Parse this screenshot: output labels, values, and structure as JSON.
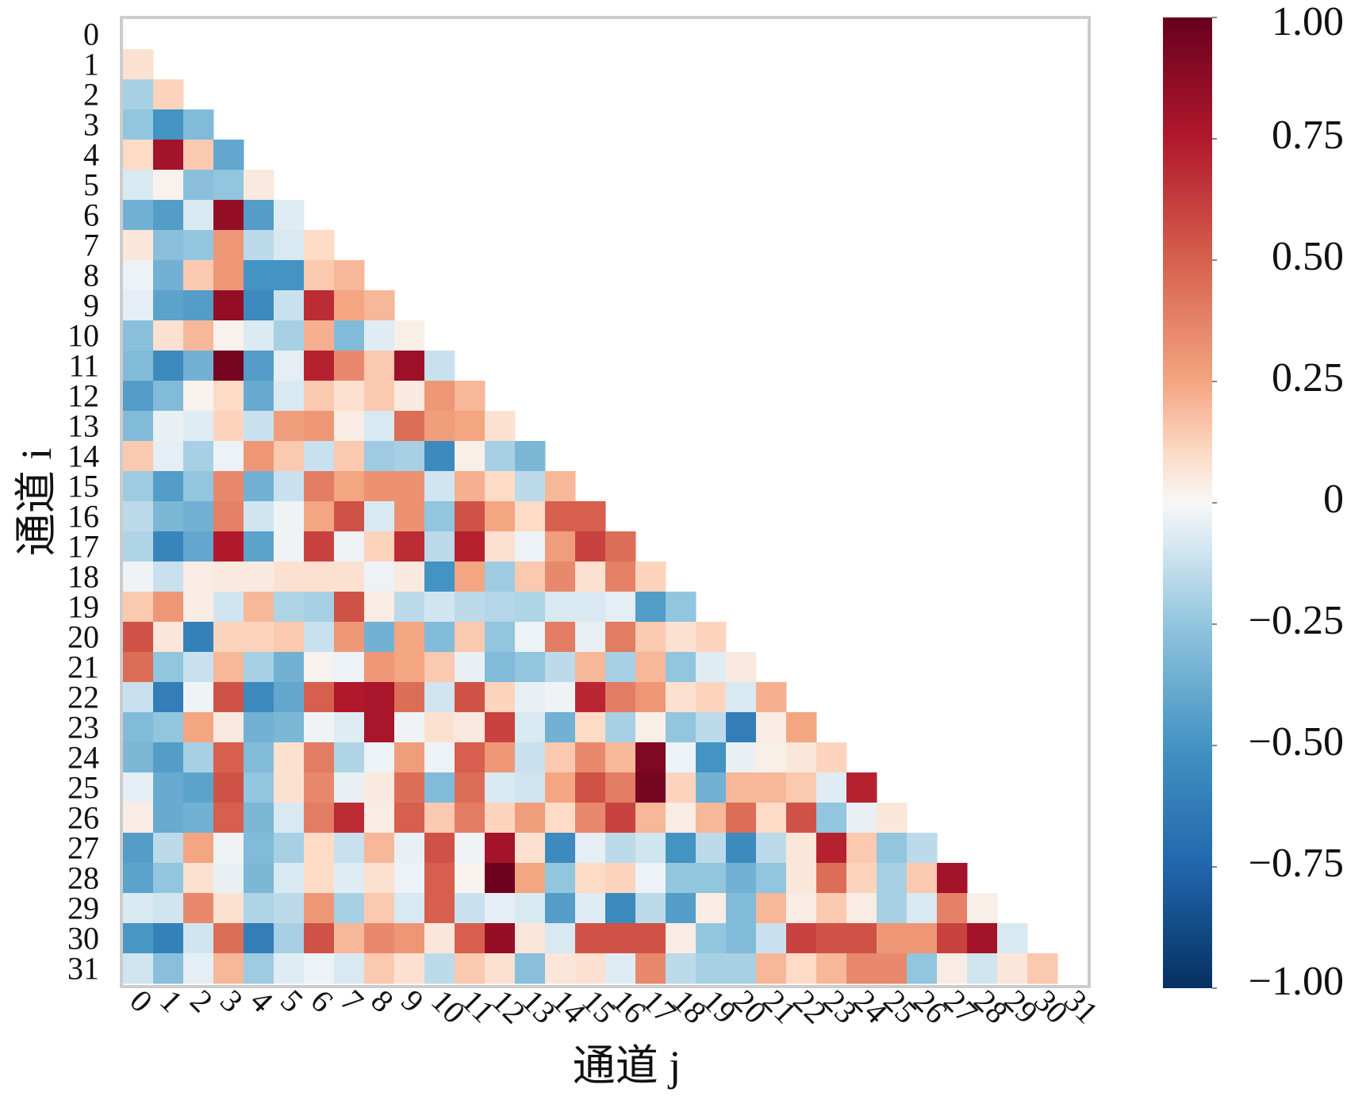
{
  "chart_data": {
    "type": "heatmap",
    "subtype": "lower-triangular correlation matrix",
    "xlabel": "通道 j",
    "ylabel": "通道 i",
    "x_categories": [
      "0",
      "1",
      "2",
      "3",
      "4",
      "5",
      "6",
      "7",
      "8",
      "9",
      "10",
      "11",
      "12",
      "13",
      "14",
      "15",
      "16",
      "17",
      "18",
      "19",
      "20",
      "21",
      "22",
      "23",
      "24",
      "25",
      "26",
      "27",
      "28",
      "29",
      "30",
      "31"
    ],
    "y_categories": [
      "0",
      "1",
      "2",
      "3",
      "4",
      "5",
      "6",
      "7",
      "8",
      "9",
      "10",
      "11",
      "12",
      "13",
      "14",
      "15",
      "16",
      "17",
      "18",
      "19",
      "20",
      "21",
      "22",
      "23",
      "24",
      "25",
      "26",
      "27",
      "28",
      "29",
      "30",
      "31"
    ],
    "colorbar": {
      "colormap": "RdBu_r",
      "range": [
        -1.0,
        1.0
      ],
      "ticks": [
        {
          "value": 1.0,
          "label": "1.00"
        },
        {
          "value": 0.75,
          "label": "0.75"
        },
        {
          "value": 0.5,
          "label": "0.50"
        },
        {
          "value": 0.25,
          "label": "0.25"
        },
        {
          "value": 0,
          "label": "0"
        },
        {
          "value": -0.25,
          "label": "−0.25"
        },
        {
          "value": -0.5,
          "label": "−0.50"
        },
        {
          "value": -0.75,
          "label": "−0.75"
        },
        {
          "value": -1.0,
          "label": "−1.00"
        }
      ]
    },
    "frame_color": "#cccccc",
    "values": [
      [],
      [
        0.08
      ],
      [
        -0.2,
        0.12
      ],
      [
        -0.25,
        -0.5,
        -0.3
      ],
      [
        0.1,
        0.8,
        0.15,
        -0.4
      ],
      [
        -0.08,
        0.02,
        -0.28,
        -0.25,
        0.05
      ],
      [
        -0.35,
        -0.45,
        -0.08,
        0.85,
        -0.45,
        -0.06
      ],
      [
        0.06,
        -0.28,
        -0.25,
        0.3,
        -0.15,
        -0.08,
        0.1
      ],
      [
        -0.03,
        -0.35,
        0.15,
        0.3,
        -0.5,
        -0.5,
        0.15,
        0.2
      ],
      [
        -0.05,
        -0.42,
        -0.45,
        0.85,
        -0.55,
        -0.12,
        0.68,
        0.25,
        0.2
      ],
      [
        -0.28,
        0.08,
        0.2,
        0.02,
        -0.07,
        -0.2,
        0.22,
        -0.3,
        -0.06,
        0.03
      ],
      [
        -0.3,
        -0.55,
        -0.35,
        0.95,
        -0.45,
        -0.05,
        0.72,
        0.35,
        0.15,
        0.82,
        -0.12
      ],
      [
        -0.45,
        -0.3,
        0.02,
        0.1,
        -0.38,
        -0.08,
        0.15,
        0.08,
        0.15,
        0.05,
        0.3,
        0.2
      ],
      [
        -0.3,
        -0.04,
        -0.06,
        0.12,
        -0.12,
        0.28,
        0.3,
        0.04,
        -0.08,
        0.45,
        0.28,
        0.25,
        0.08
      ],
      [
        0.15,
        -0.05,
        -0.2,
        -0.03,
        0.3,
        0.15,
        -0.12,
        0.15,
        -0.22,
        -0.2,
        -0.55,
        0.03,
        -0.2,
        -0.32
      ],
      [
        -0.22,
        -0.45,
        -0.25,
        0.35,
        -0.35,
        -0.12,
        0.4,
        0.25,
        0.32,
        0.32,
        -0.1,
        0.22,
        0.1,
        -0.15,
        0.2
      ],
      [
        -0.15,
        -0.32,
        -0.35,
        0.38,
        -0.1,
        -0.02,
        0.25,
        0.55,
        -0.08,
        0.32,
        -0.25,
        0.55,
        0.25,
        0.1,
        0.5,
        0.5
      ],
      [
        -0.18,
        -0.58,
        -0.4,
        0.75,
        -0.42,
        -0.02,
        0.6,
        -0.02,
        0.12,
        0.68,
        -0.15,
        0.72,
        0.08,
        -0.03,
        0.28,
        0.6,
        0.45
      ],
      [
        -0.02,
        -0.12,
        0.04,
        0.05,
        0.05,
        0.08,
        0.08,
        0.08,
        -0.03,
        0.05,
        -0.5,
        0.25,
        -0.22,
        0.15,
        0.35,
        0.08,
        0.38,
        0.12
      ],
      [
        0.15,
        0.3,
        0.04,
        -0.1,
        0.2,
        -0.18,
        -0.2,
        0.55,
        0.04,
        -0.15,
        -0.1,
        -0.15,
        -0.17,
        -0.18,
        -0.08,
        -0.08,
        -0.05,
        -0.45,
        -0.25
      ],
      [
        0.55,
        0.06,
        -0.6,
        0.12,
        0.12,
        0.15,
        -0.12,
        0.3,
        -0.35,
        0.25,
        -0.3,
        0.15,
        -0.25,
        -0.03,
        0.4,
        -0.04,
        0.4,
        0.15,
        0.08,
        0.12
      ],
      [
        0.45,
        -0.25,
        -0.12,
        0.2,
        -0.2,
        -0.35,
        0.02,
        -0.03,
        0.3,
        0.25,
        0.15,
        -0.04,
        -0.3,
        -0.25,
        -0.15,
        0.2,
        -0.2,
        0.2,
        -0.25,
        -0.06,
        0.05
      ],
      [
        -0.12,
        -0.62,
        -0.02,
        0.55,
        -0.55,
        -0.4,
        0.5,
        0.75,
        0.78,
        0.45,
        -0.1,
        0.55,
        0.12,
        -0.04,
        -0.02,
        0.7,
        0.4,
        0.3,
        0.08,
        0.12,
        -0.08,
        0.22
      ],
      [
        -0.3,
        -0.25,
        0.25,
        0.05,
        -0.35,
        -0.32,
        -0.02,
        -0.06,
        0.78,
        -0.02,
        0.08,
        0.05,
        0.6,
        -0.08,
        -0.35,
        0.1,
        -0.2,
        0.03,
        -0.25,
        -0.15,
        -0.62,
        0.04,
        0.25
      ],
      [
        -0.32,
        -0.45,
        -0.2,
        0.5,
        -0.3,
        0.08,
        0.4,
        -0.18,
        -0.03,
        0.28,
        -0.03,
        0.5,
        0.3,
        -0.12,
        0.15,
        0.35,
        0.2,
        0.92,
        -0.03,
        -0.5,
        -0.04,
        0.03,
        0.06,
        0.12
      ],
      [
        -0.05,
        -0.38,
        -0.42,
        0.55,
        -0.25,
        0.08,
        0.35,
        -0.04,
        0.05,
        0.45,
        -0.3,
        0.45,
        -0.08,
        -0.1,
        0.25,
        0.55,
        0.4,
        0.95,
        0.12,
        -0.35,
        0.2,
        0.2,
        0.15,
        -0.06,
        0.72
      ],
      [
        0.04,
        -0.38,
        -0.35,
        0.5,
        -0.32,
        -0.08,
        0.4,
        0.68,
        0.04,
        0.5,
        0.15,
        0.4,
        0.12,
        0.28,
        0.1,
        0.35,
        0.6,
        0.2,
        0.04,
        0.2,
        0.45,
        0.1,
        0.55,
        -0.25,
        -0.04,
        0.06
      ],
      [
        -0.45,
        -0.15,
        0.25,
        -0.02,
        -0.3,
        -0.2,
        0.1,
        -0.12,
        0.2,
        -0.04,
        0.55,
        -0.02,
        0.8,
        0.08,
        -0.55,
        -0.05,
        -0.15,
        -0.1,
        -0.5,
        -0.15,
        -0.55,
        -0.15,
        0.06,
        0.72,
        0.15,
        -0.25,
        -0.15
      ],
      [
        -0.42,
        -0.25,
        0.08,
        -0.04,
        -0.32,
        -0.08,
        0.1,
        -0.06,
        0.08,
        -0.03,
        0.5,
        0.02,
        0.98,
        0.25,
        -0.25,
        0.1,
        0.12,
        -0.03,
        -0.25,
        -0.25,
        -0.35,
        -0.25,
        0.06,
        0.45,
        0.12,
        -0.2,
        0.15,
        0.8
      ],
      [
        -0.08,
        -0.1,
        0.35,
        0.08,
        -0.18,
        -0.15,
        0.3,
        -0.2,
        0.15,
        -0.08,
        0.5,
        -0.12,
        -0.05,
        -0.08,
        -0.45,
        -0.06,
        -0.55,
        -0.15,
        -0.45,
        0.04,
        -0.3,
        0.2,
        0.04,
        0.15,
        0.04,
        -0.2,
        -0.08,
        0.38,
        0.03
      ],
      [
        -0.48,
        -0.6,
        -0.1,
        0.45,
        -0.62,
        -0.2,
        0.55,
        0.2,
        0.35,
        0.3,
        0.06,
        0.5,
        0.85,
        0.06,
        -0.08,
        0.55,
        0.55,
        0.55,
        0.04,
        -0.25,
        -0.3,
        -0.12,
        0.6,
        0.55,
        0.55,
        0.3,
        0.3,
        0.6,
        0.8,
        -0.08
      ],
      [
        -0.1,
        -0.28,
        -0.05,
        0.2,
        -0.22,
        -0.06,
        -0.03,
        -0.08,
        0.15,
        0.08,
        -0.15,
        0.15,
        0.08,
        -0.28,
        0.06,
        0.08,
        -0.06,
        0.35,
        -0.15,
        -0.2,
        -0.2,
        0.2,
        0.1,
        0.2,
        0.35,
        0.35,
        -0.25,
        0.04,
        -0.1,
        0.06,
        0.15
      ]
    ]
  }
}
